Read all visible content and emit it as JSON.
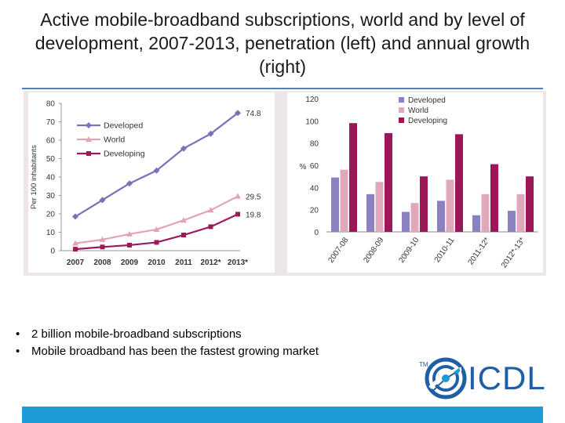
{
  "title": "Active mobile-broadband subscriptions, world and by level of development, 2007-2013, penetration (left) and annual growth (right)",
  "bullets": [
    "2 billion mobile-broadband subscriptions",
    "Mobile broadband has been the fastest growing market"
  ],
  "logo": {
    "text": "ICDL",
    "tm": "TM"
  },
  "colors": {
    "developed": "#7f6fb8",
    "world": "#e2a3b8",
    "developing": "#9c1a5b",
    "developed_bar": "#8c80c0",
    "world_bar": "#dfa9bc",
    "developing_bar": "#9b1758",
    "brand": "#1f5fa6",
    "accent_bar": "#1e9bd7"
  },
  "chart_data": [
    {
      "type": "line",
      "x": [
        "2007",
        "2008",
        "2009",
        "2010",
        "2011",
        "2012*",
        "2013*"
      ],
      "ylabel": "Per 100 inhabitants",
      "ylim": [
        0,
        80
      ],
      "yticks": [
        "0",
        "10",
        "20",
        "30",
        "40",
        "50",
        "60",
        "70",
        "80"
      ],
      "legend_position": "top-left",
      "series": [
        {
          "name": "Developed",
          "values": [
            18.5,
            27.5,
            36.5,
            43.5,
            55.5,
            63.5,
            74.8
          ],
          "end_label": "74.8"
        },
        {
          "name": "World",
          "values": [
            4,
            6,
            9,
            11.5,
            16.5,
            22,
            29.5
          ],
          "end_label": "29.5"
        },
        {
          "name": "Developing",
          "values": [
            0.8,
            2,
            3,
            4.5,
            8.5,
            13,
            19.8
          ],
          "end_label": "19.8"
        }
      ]
    },
    {
      "type": "bar",
      "categories": [
        "2007-08",
        "2008-09",
        "2009-10",
        "2010-11",
        "2011-12*",
        "2012*-13*"
      ],
      "ylabel": "%",
      "ylim": [
        0,
        120
      ],
      "yticks": [
        "0",
        "20",
        "40",
        "60",
        "80",
        "100",
        "120"
      ],
      "legend_position": "top-left",
      "series": [
        {
          "name": "Developed",
          "values": [
            49,
            34,
            18,
            28,
            15,
            19
          ]
        },
        {
          "name": "World",
          "values": [
            56,
            45,
            26,
            47,
            34,
            34
          ]
        },
        {
          "name": "Developing",
          "values": [
            98,
            89,
            50,
            88,
            61,
            50
          ]
        }
      ]
    }
  ]
}
